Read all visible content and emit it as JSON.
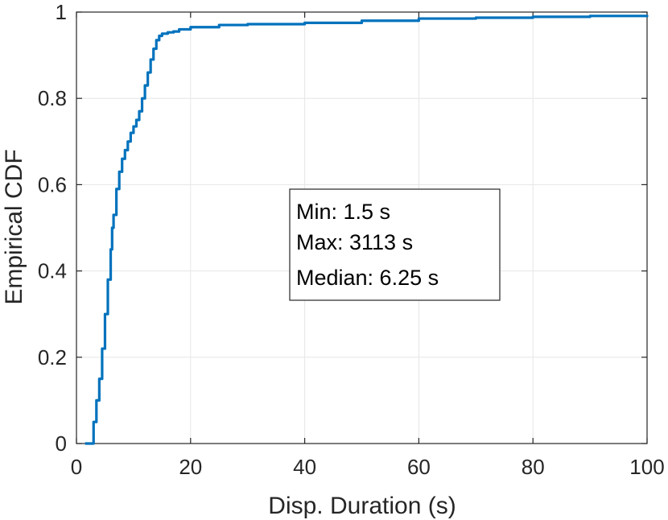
{
  "chart_data": {
    "type": "line",
    "title": "",
    "xlabel": "Disp. Duration (s)",
    "ylabel": "Empirical CDF",
    "xlim": [
      0,
      100
    ],
    "ylim": [
      0,
      1
    ],
    "xticks": [
      "0",
      "20",
      "40",
      "60",
      "80",
      "100"
    ],
    "yticks": [
      "0",
      "0.2",
      "0.4",
      "0.6",
      "0.8",
      "1"
    ],
    "grid": true,
    "legend": "none",
    "series": [
      {
        "color": "#0072BD",
        "x": [
          1.5,
          2.9,
          3.0,
          3.5,
          4.0,
          4.5,
          5.0,
          5.5,
          6.0,
          6.25,
          6.5,
          7.0,
          7.5,
          8.0,
          8.5,
          9.0,
          9.5,
          10.0,
          10.5,
          11.0,
          11.5,
          12.0,
          12.5,
          13.0,
          13.5,
          14.0,
          14.5,
          15.0,
          16.0,
          17.0,
          18.0,
          20.0,
          25.0,
          30.0,
          40.0,
          50.0,
          60.0,
          70.0,
          80.0,
          90.0,
          100.0
        ],
        "y": [
          0.0,
          0.0,
          0.05,
          0.1,
          0.15,
          0.22,
          0.3,
          0.38,
          0.45,
          0.5,
          0.53,
          0.59,
          0.63,
          0.66,
          0.68,
          0.7,
          0.72,
          0.735,
          0.75,
          0.77,
          0.8,
          0.83,
          0.86,
          0.89,
          0.915,
          0.935,
          0.945,
          0.95,
          0.953,
          0.955,
          0.96,
          0.965,
          0.97,
          0.972,
          0.975,
          0.98,
          0.985,
          0.987,
          0.989,
          0.991,
          0.993
        ]
      }
    ],
    "annotation": {
      "lines": [
        "Min: 1.5 s",
        "Max: 3113 s",
        "Median: 6.25 s"
      ]
    }
  }
}
